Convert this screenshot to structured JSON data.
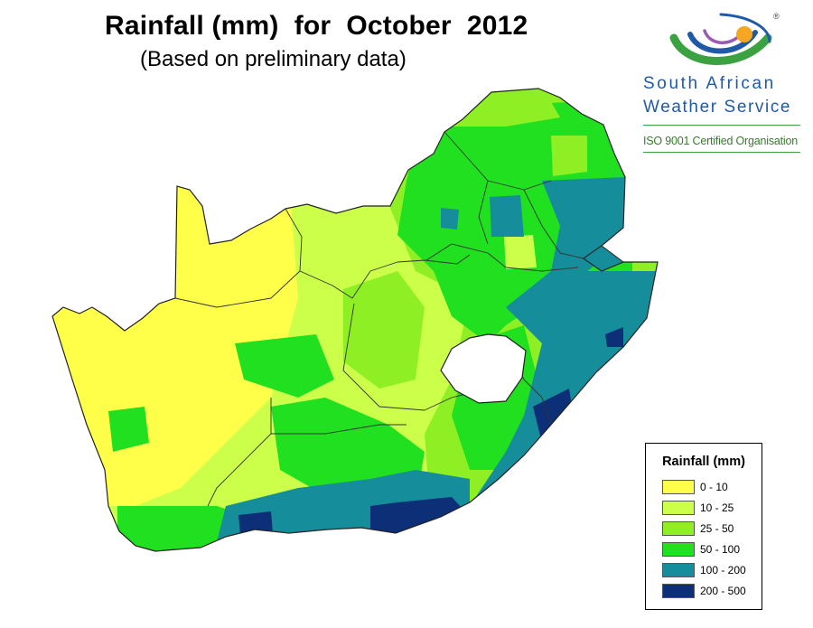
{
  "title": "Rainfall (mm)  for  October  2012",
  "subtitle": "(Based on preliminary data)",
  "logo": {
    "line1": "South  African",
    "line2": "Weather Service",
    "iso": "ISO 9001 Certified Organisation",
    "registered": "®",
    "colors": {
      "green": "#3aa240",
      "blue": "#1f5aa8",
      "sun": "#f5a623"
    }
  },
  "legend": {
    "title": "Rainfall (mm)",
    "classes": [
      {
        "label": "0 - 10",
        "color": "#ffff4a"
      },
      {
        "label": "10 - 25",
        "color": "#ccff4a"
      },
      {
        "label": "25 - 50",
        "color": "#8ef024"
      },
      {
        "label": "50 - 100",
        "color": "#20e020"
      },
      {
        "label": "100 - 200",
        "color": "#168d9a"
      },
      {
        "label": "200 - 500",
        "color": "#0c2f78"
      }
    ]
  }
}
